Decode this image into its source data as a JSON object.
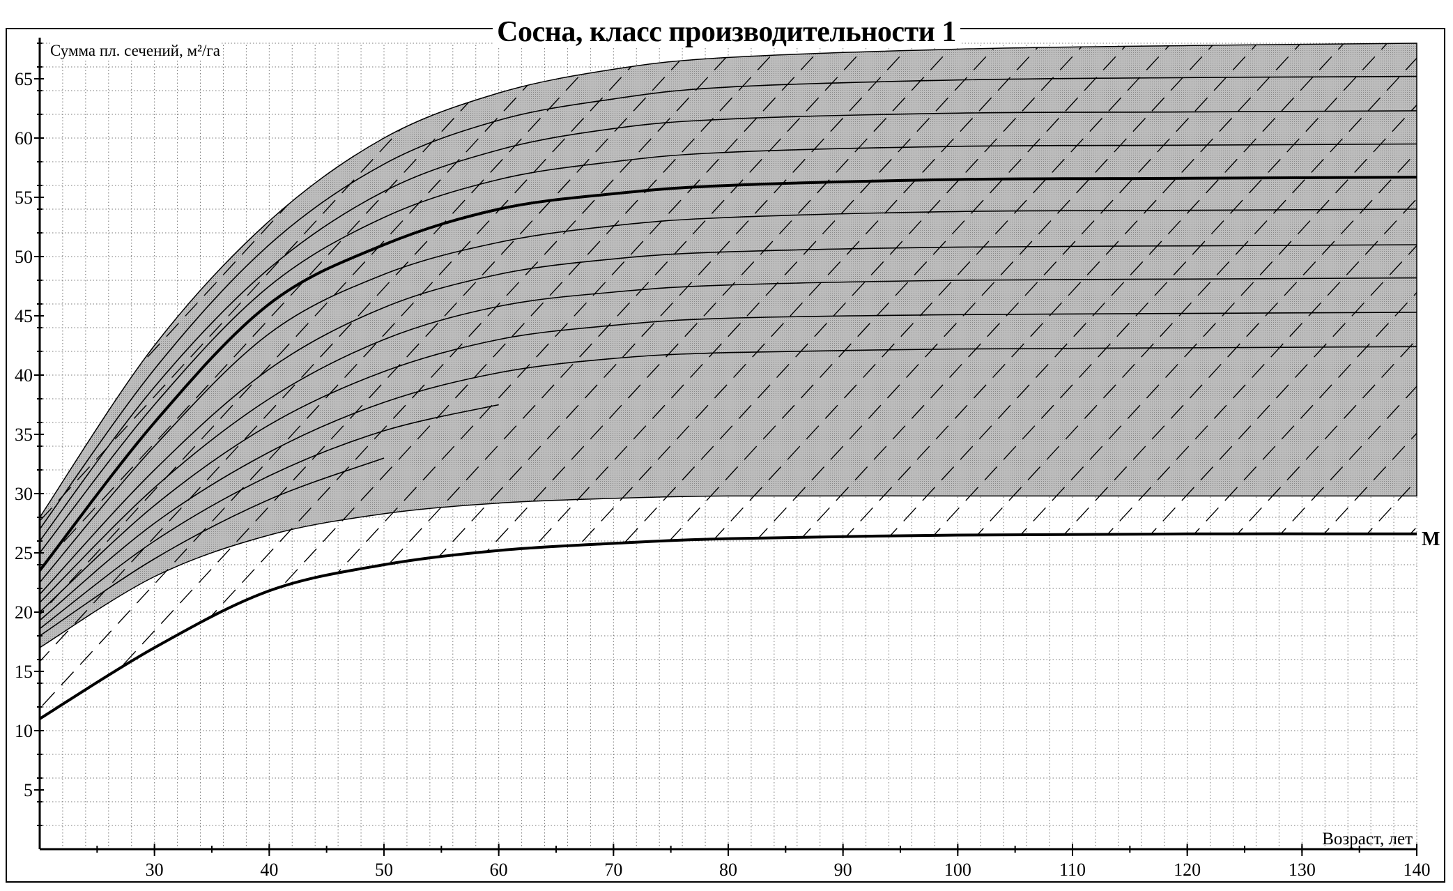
{
  "chart_data": {
    "type": "line",
    "title": "Сосна, класс производительности 1",
    "ylabel": "Сумма пл. сечений, м²/га",
    "xlabel": "Возраст, лет",
    "xlim": [
      20,
      140
    ],
    "ylim": [
      0,
      68
    ],
    "grid": true,
    "x_ticks": [
      30,
      40,
      50,
      60,
      70,
      80,
      90,
      100,
      110,
      120,
      130,
      140
    ],
    "y_ticks": [
      5,
      10,
      15,
      20,
      25,
      30,
      35,
      40,
      45,
      50,
      55,
      60,
      65
    ],
    "x": [
      20,
      30,
      40,
      50,
      60,
      70,
      80,
      100,
      120,
      140
    ],
    "band": {
      "color": "#bdbdbd",
      "upper": [
        28,
        42.5,
        53,
        60,
        63.8,
        65.8,
        66.8,
        67.5,
        67.8,
        68
      ],
      "lower": [
        17,
        23,
        26.5,
        28.3,
        29.2,
        29.6,
        29.8,
        29.8,
        29.8,
        29.8
      ]
    },
    "series": [
      {
        "values": [
          27,
          40.5,
          51,
          57.8,
          61.5,
          63.3,
          64.3,
          64.9,
          65.1,
          65.2
        ],
        "style": "thin"
      },
      {
        "values": [
          26,
          39,
          49,
          55.5,
          59,
          60.8,
          61.6,
          62.1,
          62.2,
          62.3
        ],
        "style": "thin"
      },
      {
        "values": [
          25,
          37.5,
          47.5,
          53.3,
          56.5,
          58,
          58.8,
          59.3,
          59.4,
          59.5
        ],
        "style": "thin"
      },
      {
        "values": [
          23.5,
          36,
          46,
          51,
          54,
          55.3,
          56,
          56.5,
          56.6,
          56.7
        ],
        "style": "thick"
      },
      {
        "values": [
          22.5,
          34,
          43.5,
          48.5,
          51.2,
          52.6,
          53.3,
          53.8,
          53.9,
          54
        ],
        "style": "thin"
      },
      {
        "values": [
          21.5,
          32,
          40.5,
          45.7,
          48.5,
          49.8,
          50.4,
          50.8,
          50.9,
          51
        ],
        "style": "thin"
      },
      {
        "values": [
          20.8,
          30.5,
          38,
          43,
          45.8,
          47,
          47.6,
          48,
          48.1,
          48.2
        ],
        "style": "thin"
      },
      {
        "values": [
          20,
          29,
          35.8,
          40.3,
          43,
          44.2,
          44.8,
          45.1,
          45.2,
          45.3
        ],
        "style": "thin"
      },
      {
        "values": [
          19.3,
          27.5,
          33.5,
          37.7,
          40.2,
          41.4,
          41.9,
          42.2,
          42.3,
          42.4
        ],
        "style": "thin"
      },
      {
        "values": [
          18.6,
          26,
          31.5,
          35.3,
          37.5,
          null,
          null,
          null,
          null,
          null
        ],
        "style": "thin"
      },
      {
        "values": [
          18,
          24.5,
          29.5,
          33,
          null,
          null,
          null,
          null,
          null,
          null
        ],
        "style": "thin"
      },
      {
        "name": "М",
        "values": [
          11,
          17,
          21.8,
          24,
          25.2,
          25.8,
          26.2,
          26.5,
          26.6,
          26.6
        ],
        "style": "thick"
      }
    ],
    "annotations": [
      "М"
    ]
  }
}
